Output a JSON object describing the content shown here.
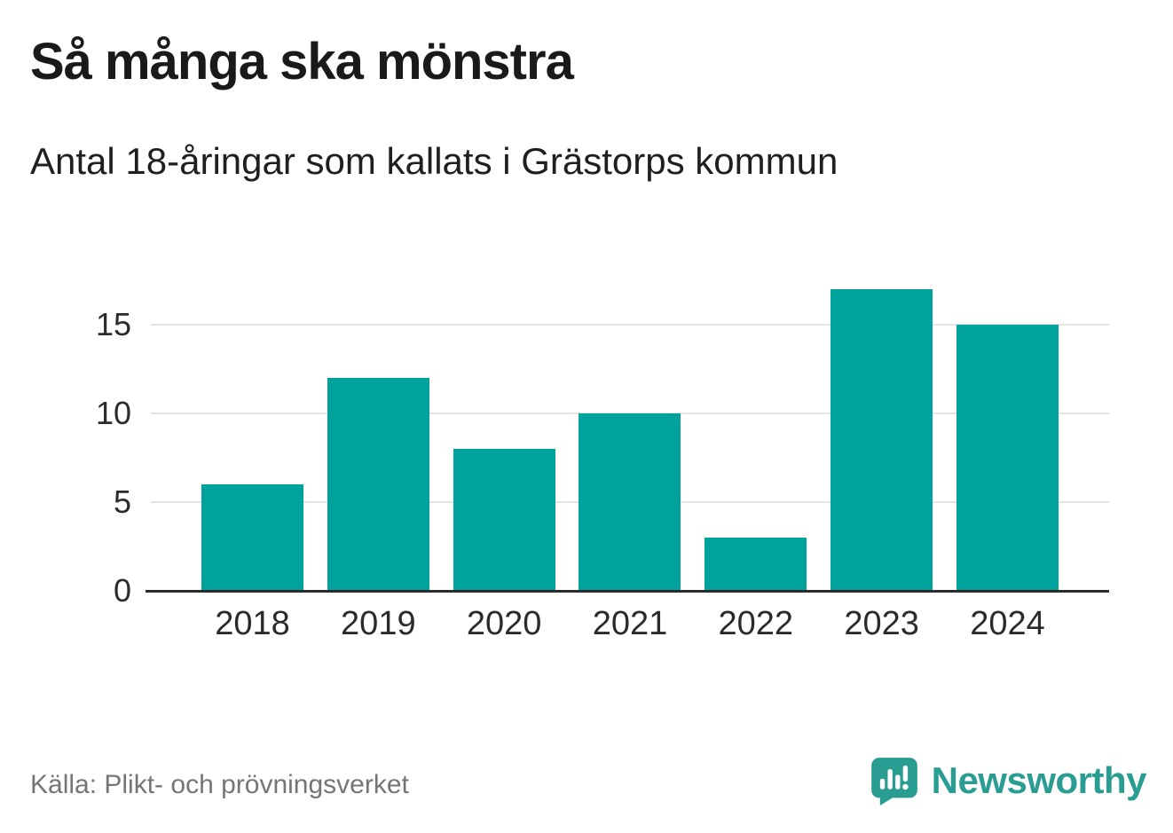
{
  "header": {
    "title": "Så många ska mönstra",
    "subtitle": "Antal 18-åringar som kallats i Grästorps kommun"
  },
  "chart_data": {
    "type": "bar",
    "categories": [
      "2018",
      "2019",
      "2020",
      "2021",
      "2022",
      "2023",
      "2024"
    ],
    "values": [
      6,
      12,
      8,
      10,
      3,
      17,
      15
    ],
    "title": "Så många ska mönstra",
    "subtitle": "Antal 18-åringar som kallats i Grästorps kommun",
    "xlabel": "",
    "ylabel": "",
    "ylim": [
      0,
      17.5
    ],
    "yticks": [
      0,
      5,
      10,
      15
    ],
    "gridlines": [
      5,
      10,
      15
    ],
    "grid": true,
    "legend": "none",
    "bar_color": "#00a39b",
    "axis_color": "#2b2b2b",
    "gridline_color": "#e4e4e4"
  },
  "footer": {
    "source": "Källa: Plikt- och prövningsverket",
    "brand": "Newsworthy",
    "brand_color": "#2a9d93"
  }
}
